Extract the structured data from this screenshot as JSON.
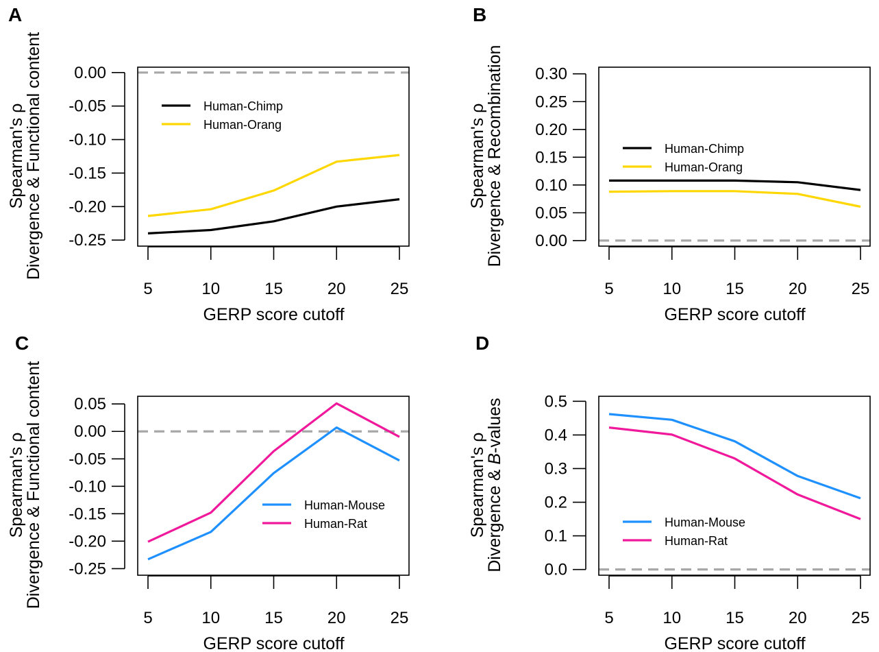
{
  "chart_data": [
    {
      "panel": "A",
      "type": "line",
      "xlabel": "GERP score cutoff",
      "ylabel_lines": [
        "Spearman's ρ",
        "Divergence & Functional content"
      ],
      "x": [
        5,
        10,
        15,
        20,
        25
      ],
      "xticks": [
        "5",
        "10",
        "15",
        "20",
        "25"
      ],
      "yticks": [
        "0.00",
        "-0.05",
        "-0.10",
        "-0.15",
        "-0.20",
        "-0.25"
      ],
      "ytick_values": [
        0,
        -0.05,
        -0.1,
        -0.15,
        -0.2,
        -0.25
      ],
      "ylim": [
        -0.259,
        0.008
      ],
      "reference_line": 0,
      "legend_position": "top-left",
      "series": [
        {
          "name": "Human-Chimp",
          "color": "#000000",
          "values": [
            -0.24,
            -0.235,
            -0.222,
            -0.2,
            -0.189
          ]
        },
        {
          "name": "Human-Orang",
          "color": "#FFD700",
          "values": [
            -0.214,
            -0.204,
            -0.176,
            -0.133,
            -0.123
          ]
        }
      ]
    },
    {
      "panel": "B",
      "type": "line",
      "xlabel": "GERP score cutoff",
      "ylabel_lines": [
        "Spearman's ρ",
        "Divergence & Recombination"
      ],
      "x": [
        5,
        10,
        15,
        20,
        25
      ],
      "xticks": [
        "5",
        "10",
        "15",
        "20",
        "25"
      ],
      "yticks": [
        "0.30",
        "0.25",
        "0.20",
        "0.15",
        "0.10",
        "0.05",
        "0.00"
      ],
      "ytick_values": [
        0.3,
        0.25,
        0.2,
        0.15,
        0.1,
        0.05,
        0.0
      ],
      "ylim": [
        -0.01,
        0.312
      ],
      "reference_line": 0,
      "legend_position": "middle-left",
      "series": [
        {
          "name": "Human-Chimp",
          "color": "#000000",
          "values": [
            0.108,
            0.108,
            0.108,
            0.105,
            0.091
          ]
        },
        {
          "name": "Human-Orang",
          "color": "#FFD700",
          "values": [
            0.088,
            0.089,
            0.089,
            0.084,
            0.061
          ]
        }
      ]
    },
    {
      "panel": "C",
      "type": "line",
      "xlabel": "GERP score cutoff",
      "ylabel_lines": [
        "Spearman's ρ",
        "Divergence & Functional content"
      ],
      "x": [
        5,
        10,
        15,
        20,
        25
      ],
      "xticks": [
        "5",
        "10",
        "15",
        "20",
        "25"
      ],
      "yticks": [
        "0.05",
        "0.00",
        "-0.05",
        "-0.10",
        "-0.15",
        "-0.20",
        "-0.25"
      ],
      "ytick_values": [
        0.05,
        0.0,
        -0.05,
        -0.1,
        -0.15,
        -0.2,
        -0.25
      ],
      "ylim": [
        -0.262,
        0.064
      ],
      "reference_line": 0,
      "legend_position": "bottom-right",
      "series": [
        {
          "name": "Human-Mouse",
          "color": "#1E90FF",
          "values": [
            -0.233,
            -0.183,
            -0.076,
            0.007,
            -0.053
          ]
        },
        {
          "name": "Human-Rat",
          "color": "#F0189B",
          "values": [
            -0.201,
            -0.148,
            -0.036,
            0.051,
            -0.01
          ]
        }
      ]
    },
    {
      "panel": "D",
      "type": "line",
      "xlabel": "GERP score cutoff",
      "ylabel_lines": [
        "Spearman's ρ",
        "Divergence & B-values"
      ],
      "x": [
        5,
        10,
        15,
        20,
        25
      ],
      "xticks": [
        "5",
        "10",
        "15",
        "20",
        "25"
      ],
      "yticks": [
        "0.5",
        "0.4",
        "0.3",
        "0.2",
        "0.1",
        "0.0"
      ],
      "ytick_values": [
        0.5,
        0.4,
        0.3,
        0.2,
        0.1,
        0.0
      ],
      "ylim": [
        -0.017,
        0.515
      ],
      "reference_line": 0,
      "legend_position": "bottom-left",
      "series": [
        {
          "name": "Human-Mouse",
          "color": "#1E90FF",
          "values": [
            0.462,
            0.445,
            0.381,
            0.278,
            0.212
          ]
        },
        {
          "name": "Human-Rat",
          "color": "#F0189B",
          "values": [
            0.422,
            0.401,
            0.33,
            0.223,
            0.15
          ]
        }
      ]
    }
  ],
  "colors": {
    "reference_line": "#A8A8A8",
    "frame": "#000000"
  }
}
